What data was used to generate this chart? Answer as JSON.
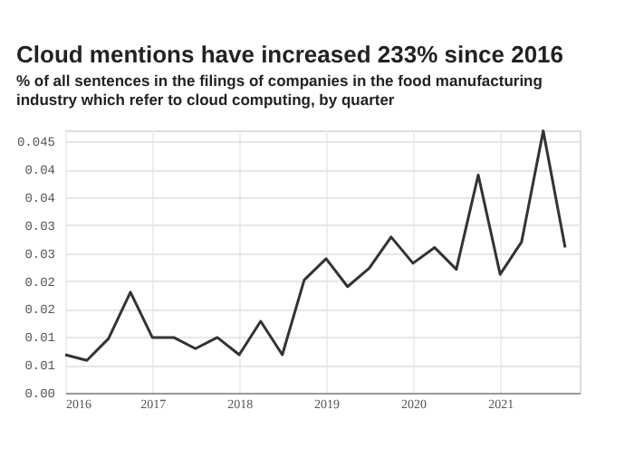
{
  "chart_data": {
    "type": "line",
    "title": "Cloud mentions have increased 233% since 2016",
    "subtitle": "% of all sentences in the filings of companies in the food manufacturing industry which refer to cloud computing, by quarter",
    "x": [
      "2016-01",
      "2016-04",
      "2016-07",
      "2016-10",
      "2017-01",
      "2017-04",
      "2017-07",
      "2017-10",
      "2018-01",
      "2018-04",
      "2018-07",
      "2018-10",
      "2019-01",
      "2019-04",
      "2019-07",
      "2019-10",
      "2020-01",
      "2020-04",
      "2020-07",
      "2020-10",
      "2021-01",
      "2021-04",
      "2021-07",
      "2021-10"
    ],
    "series": [
      {
        "color": "#333333",
        "values": [
          0.0068,
          0.0058,
          0.0097,
          0.018,
          0.0099,
          0.0099,
          0.0079,
          0.0099,
          0.0068,
          0.0128,
          0.0068,
          0.0202,
          0.024,
          0.019,
          0.0223,
          0.0279,
          0.0232,
          0.026,
          0.0221,
          0.039,
          0.0212,
          0.027,
          0.0469,
          0.026
        ]
      }
    ],
    "xlim": [
      "2016-01",
      "2021-12"
    ],
    "xticks": [
      {
        "value": "2016",
        "label": "2016"
      },
      {
        "value": "2017",
        "label": "2017"
      },
      {
        "value": "2018",
        "label": "2018"
      },
      {
        "value": "2019",
        "label": "2019"
      },
      {
        "value": "2020",
        "label": "2020"
      },
      {
        "value": "2021",
        "label": "2021"
      }
    ],
    "ylim": [
      0,
      0.047
    ],
    "yticks": [
      {
        "value": 0,
        "label": "0.00"
      },
      {
        "value": 0.005,
        "label": "0.01"
      },
      {
        "value": 0.01,
        "label": "0.01"
      },
      {
        "value": 0.015,
        "label": "0.02"
      },
      {
        "value": 0.02,
        "label": "0.02"
      },
      {
        "value": 0.025,
        "label": "0.03"
      },
      {
        "value": 0.03,
        "label": "0.03"
      },
      {
        "value": 0.035,
        "label": "0.04"
      },
      {
        "value": 0.04,
        "label": "0.04"
      },
      {
        "value": 0.045,
        "label": "0.045"
      }
    ],
    "grid": true,
    "marker": "none",
    "line_style": "solid"
  }
}
